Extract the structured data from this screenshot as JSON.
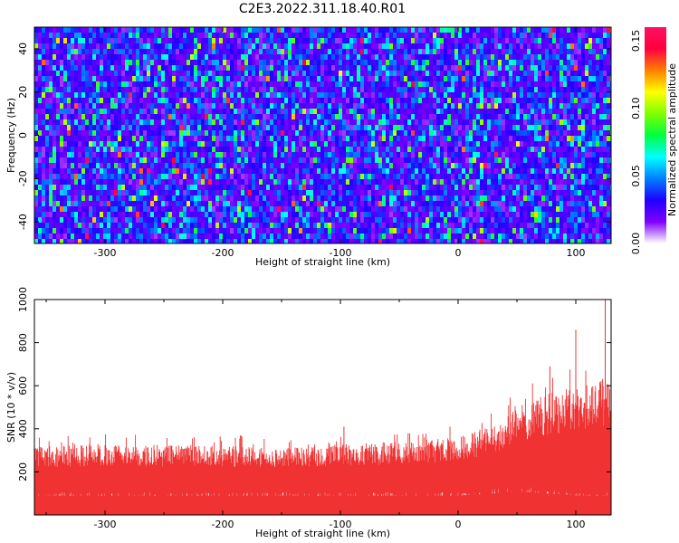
{
  "title": "C2E3.2022.311.18.40.R01",
  "chart_data": [
    {
      "type": "heatmap",
      "xlabel": "Height of straight line (km)",
      "ylabel": "Frequency (Hz)",
      "xlim": [
        -360,
        130
      ],
      "ylim": [
        -50,
        50
      ],
      "xticks": [
        -300,
        -200,
        -100,
        0,
        100
      ],
      "xtick_labels": [
        "-300",
        "-200",
        "-100",
        "0",
        "100"
      ],
      "yticks": [
        -40,
        -20,
        0,
        20,
        40
      ],
      "ytick_labels": [
        "-40",
        "-20",
        "0",
        "20",
        "40"
      ],
      "colorbar": {
        "label": "Normalized spectral amplitude",
        "range": [
          0.0,
          0.16
        ],
        "ticks": [
          0.0,
          0.05,
          0.1,
          0.15
        ],
        "tick_labels": [
          "0.00",
          "0.05",
          "0.10",
          "0.15"
        ],
        "colormap": [
          "#ffffff",
          "#8000ff",
          "#2000ff",
          "#0080ff",
          "#00ffff",
          "#00ff40",
          "#80ff00",
          "#ffff00",
          "#ff8000",
          "#ff0040",
          "#ff1060"
        ]
      },
      "value_distribution": {
        "typical": 0.02,
        "max": 0.16
      }
    },
    {
      "type": "area",
      "xlabel": "Height of straight line (km)",
      "ylabel": "SNR (10 * v/v)",
      "xlim": [
        -360,
        130
      ],
      "ylim": [
        0,
        1000
      ],
      "xticks": [
        -300,
        -200,
        -100,
        0,
        100
      ],
      "xtick_labels": [
        "-300",
        "-200",
        "-100",
        "0",
        "100"
      ],
      "yticks": [
        200,
        400,
        600,
        800,
        1000
      ],
      "ytick_labels": [
        "200",
        "400",
        "600",
        "800",
        "1000"
      ],
      "color": "#f03232",
      "envelope": {
        "x": [
          -360,
          -300,
          -200,
          -100,
          -50,
          0,
          30,
          50,
          75,
          100,
          115,
          125,
          130
        ],
        "y_low": [
          70,
          70,
          70,
          70,
          70,
          70,
          80,
          90,
          80,
          70,
          70,
          70,
          70
        ],
        "y_high": [
          320,
          330,
          320,
          330,
          340,
          360,
          420,
          500,
          560,
          600,
          620,
          640,
          650
        ]
      },
      "peaks": [
        {
          "x": -97,
          "y": 410
        },
        {
          "x": 78,
          "y": 690
        },
        {
          "x": 100,
          "y": 860
        },
        {
          "x": 125,
          "y": 1000
        }
      ]
    }
  ]
}
